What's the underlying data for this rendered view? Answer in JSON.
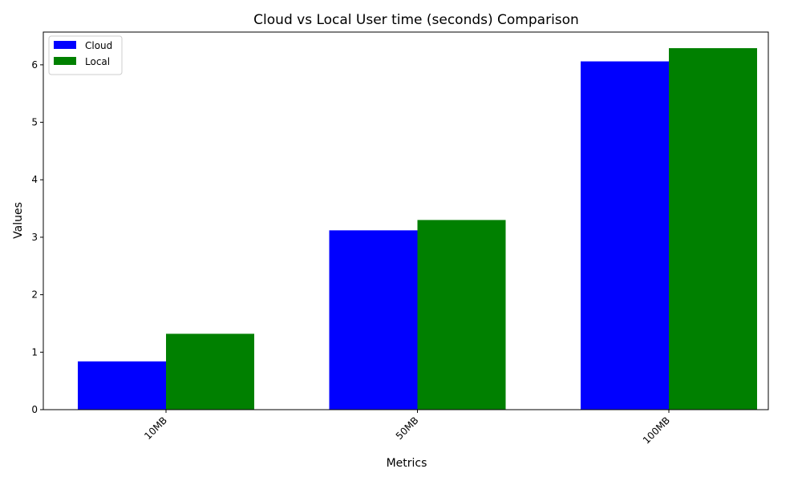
{
  "chart_data": {
    "type": "bar",
    "title": "Cloud vs Local User time (seconds) Comparison",
    "xlabel": "Metrics",
    "ylabel": "Values",
    "categories": [
      "10MB",
      "50MB",
      "100MB"
    ],
    "series": [
      {
        "name": "Cloud",
        "color": "#0000ff",
        "values": [
          0.84,
          3.12,
          6.06
        ]
      },
      {
        "name": "Local",
        "color": "#008000",
        "values": [
          1.32,
          3.3,
          6.29
        ]
      }
    ],
    "ylim": [
      0,
      6.57
    ],
    "yticks": [
      0,
      1,
      2,
      3,
      4,
      5,
      6
    ],
    "ytick_labels": [
      "0",
      "1",
      "2",
      "3",
      "4",
      "5",
      "6"
    ],
    "xtick_rotation": -45,
    "legend_position": "top-left",
    "grid": false
  }
}
